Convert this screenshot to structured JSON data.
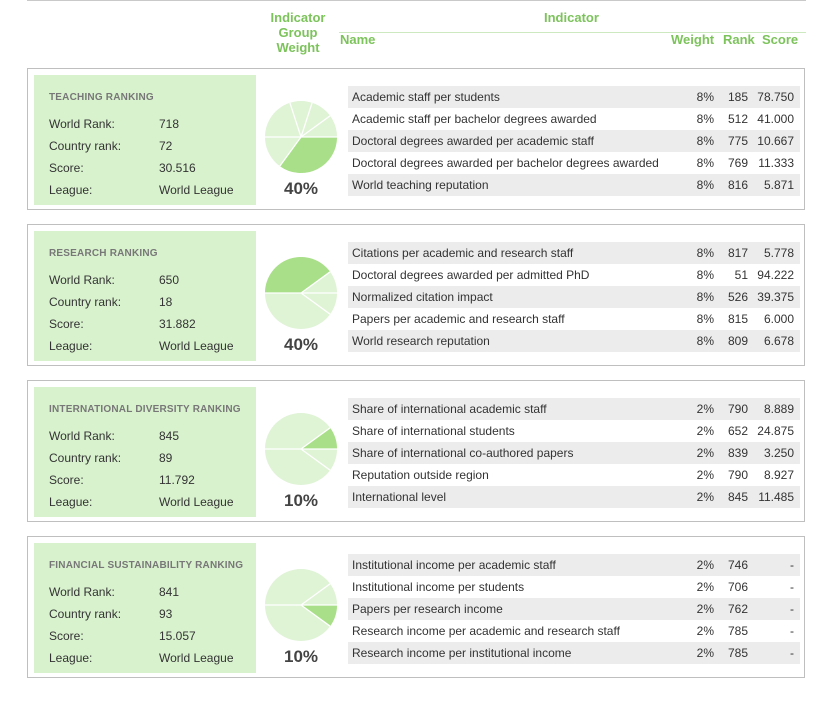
{
  "header": {
    "group_weight": "Indicator Group Weight",
    "group_weight_lines": [
      "Indicator",
      "Group",
      "Weight"
    ],
    "indicator": "Indicator",
    "name": "Name",
    "weight": "Weight",
    "rank": "Rank",
    "score": "Score"
  },
  "colors": {
    "accent_green": "#7cc35b",
    "summary_bg": "#d9f2ce",
    "pie_light": "#dff3d5",
    "pie_dark": "#a8df88"
  },
  "sections": [
    {
      "title": "TEACHING RANKING",
      "world_rank_label": "World Rank:",
      "world_rank": "718",
      "country_rank_label": "Country rank:",
      "country_rank": "72",
      "score_label": "Score:",
      "score": "30.516",
      "league_label": "League:",
      "league": "World League",
      "group_weight": "40%",
      "indicators": [
        {
          "name": "Academic staff per students",
          "weight": "8%",
          "rank": "185",
          "score": "78.750"
        },
        {
          "name": "Academic staff per bachelor degrees awarded",
          "weight": "8%",
          "rank": "512",
          "score": "41.000"
        },
        {
          "name": "Doctoral degrees awarded per academic staff",
          "weight": "8%",
          "rank": "775",
          "score": "10.667"
        },
        {
          "name": "Doctoral degrees awarded per bachelor degrees awarded",
          "weight": "8%",
          "rank": "769",
          "score": "11.333"
        },
        {
          "name": "World teaching reputation",
          "weight": "8%",
          "rank": "816",
          "score": "5.871"
        }
      ]
    },
    {
      "title": "RESEARCH RANKING",
      "world_rank_label": "World Rank:",
      "world_rank": "650",
      "country_rank_label": "Country rank:",
      "country_rank": "18",
      "score_label": "Score:",
      "score": "31.882",
      "league_label": "League:",
      "league": "World League",
      "group_weight": "40%",
      "indicators": [
        {
          "name": "Citations per academic and research staff",
          "weight": "8%",
          "rank": "817",
          "score": "5.778"
        },
        {
          "name": "Doctoral degrees awarded per admitted PhD",
          "weight": "8%",
          "rank": "51",
          "score": "94.222"
        },
        {
          "name": "Normalized citation impact",
          "weight": "8%",
          "rank": "526",
          "score": "39.375"
        },
        {
          "name": "Papers per academic and research staff",
          "weight": "8%",
          "rank": "815",
          "score": "6.000"
        },
        {
          "name": "World research reputation",
          "weight": "8%",
          "rank": "809",
          "score": "6.678"
        }
      ]
    },
    {
      "title": "INTERNATIONAL DIVERSITY RANKING",
      "world_rank_label": "World Rank:",
      "world_rank": "845",
      "country_rank_label": "Country rank:",
      "country_rank": "89",
      "score_label": "Score:",
      "score": "11.792",
      "league_label": "League:",
      "league": "World League",
      "group_weight": "10%",
      "indicators": [
        {
          "name": "Share of international academic staff",
          "weight": "2%",
          "rank": "790",
          "score": "8.889"
        },
        {
          "name": "Share of international students",
          "weight": "2%",
          "rank": "652",
          "score": "24.875"
        },
        {
          "name": "Share of international co-authored papers",
          "weight": "2%",
          "rank": "839",
          "score": "3.250"
        },
        {
          "name": "Reputation outside region",
          "weight": "2%",
          "rank": "790",
          "score": "8.927"
        },
        {
          "name": "International level",
          "weight": "2%",
          "rank": "845",
          "score": "11.485"
        }
      ]
    },
    {
      "title": "FINANCIAL SUSTAINABILITY RANKING",
      "world_rank_label": "World Rank:",
      "world_rank": "841",
      "country_rank_label": "Country rank:",
      "country_rank": "93",
      "score_label": "Score:",
      "score": "15.057",
      "league_label": "League:",
      "league": "World League",
      "group_weight": "10%",
      "indicators": [
        {
          "name": "Institutional income per academic staff",
          "weight": "2%",
          "rank": "746",
          "score": "-"
        },
        {
          "name": "Institutional income per students",
          "weight": "2%",
          "rank": "706",
          "score": "-"
        },
        {
          "name": "Papers per research income",
          "weight": "2%",
          "rank": "762",
          "score": "-"
        },
        {
          "name": "Research income per academic and research staff",
          "weight": "2%",
          "rank": "785",
          "score": "-"
        },
        {
          "name": "Research income per institutional income",
          "weight": "2%",
          "rank": "785",
          "score": "-"
        }
      ]
    }
  ]
}
